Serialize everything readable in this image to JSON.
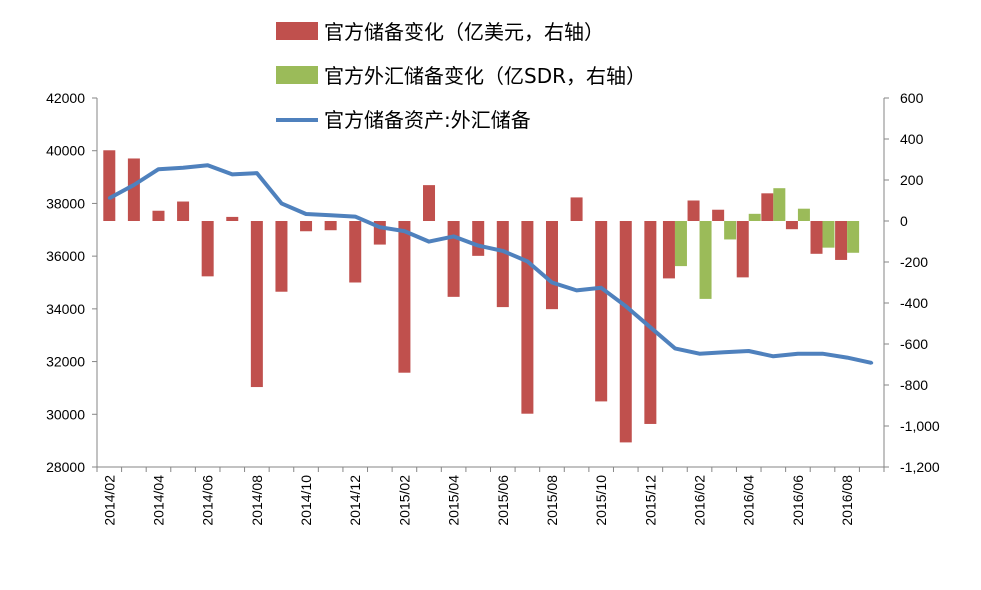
{
  "chart_data": {
    "type": "bar+line",
    "categories": [
      "2014/02",
      "2014/03",
      "2014/04",
      "2014/05",
      "2014/06",
      "2014/07",
      "2014/08",
      "2014/09",
      "2014/10",
      "2014/11",
      "2014/12",
      "2015/01",
      "2015/02",
      "2015/03",
      "2015/04",
      "2015/05",
      "2015/06",
      "2015/07",
      "2015/08",
      "2015/09",
      "2015/10",
      "2015/11",
      "2015/12",
      "2016/01",
      "2016/02",
      "2016/03",
      "2016/04",
      "2016/05",
      "2016/06",
      "2016/07",
      "2016/08",
      "2016/09"
    ],
    "x_tick_labels": [
      "2014/02",
      "2014/04",
      "2014/06",
      "2014/08",
      "2014/10",
      "2014/12",
      "2015/02",
      "2015/04",
      "2015/06",
      "2015/08",
      "2015/10",
      "2015/12",
      "2016/02",
      "2016/04",
      "2016/06",
      "2016/08"
    ],
    "left_axis": {
      "range": [
        28000,
        42000
      ],
      "ticks": [
        "28000",
        "30000",
        "32000",
        "34000",
        "36000",
        "38000",
        "40000",
        "42000"
      ]
    },
    "right_axis": {
      "range": [
        -1200,
        600
      ],
      "ticks": [
        "-1,200",
        "-1,000",
        "-800",
        "-600",
        "-400",
        "-200",
        "0",
        "200",
        "400",
        "600"
      ]
    },
    "series": [
      {
        "name": "官方储备变化（亿美元，右轴）",
        "type": "bar",
        "axis": "right",
        "color": "#C0504D",
        "values": [
          345,
          305,
          50,
          95,
          -270,
          20,
          -810,
          -345,
          -50,
          -45,
          -300,
          -115,
          -740,
          175,
          -370,
          -170,
          -420,
          -940,
          -430,
          115,
          -880,
          -1080,
          -990,
          -280,
          100,
          55,
          -275,
          135,
          -40,
          -160,
          -190,
          null
        ]
      },
      {
        "name": "官方外汇储备变化（亿SDR，右轴）",
        "type": "bar",
        "axis": "right",
        "color": "#9BBB59",
        "values": [
          null,
          null,
          null,
          null,
          null,
          null,
          null,
          null,
          null,
          null,
          null,
          null,
          null,
          null,
          null,
          null,
          null,
          null,
          null,
          null,
          null,
          null,
          null,
          -220,
          -380,
          -90,
          35,
          160,
          60,
          -130,
          -155,
          null
        ]
      },
      {
        "name": "官方储备资产:外汇储备",
        "type": "line",
        "axis": "left",
        "color": "#4F81BD",
        "values": [
          38200,
          38700,
          39300,
          39350,
          39450,
          39100,
          39150,
          38000,
          37600,
          37550,
          37500,
          37100,
          36950,
          36550,
          36750,
          36400,
          36200,
          35800,
          35000,
          34700,
          34800,
          34100,
          33300,
          32500,
          32300,
          32350,
          32400,
          32200,
          32300,
          32300,
          32150,
          31950
        ]
      }
    ]
  }
}
